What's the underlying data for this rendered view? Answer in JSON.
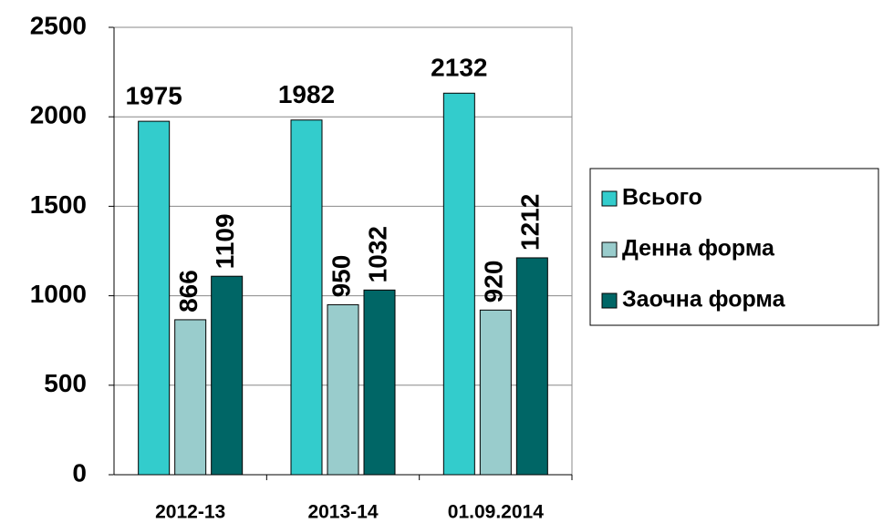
{
  "chart_data": {
    "type": "bar",
    "categories": [
      "2012-13",
      "2013-14",
      "01.09.2014"
    ],
    "series": [
      {
        "name": "Всього",
        "color": "#33cccc",
        "values": [
          1975,
          1982,
          2132
        ]
      },
      {
        "name": "Денна форма",
        "color": "#99cccc",
        "values": [
          866,
          950,
          920
        ]
      },
      {
        "name": "Заочна форма",
        "color": "#006666",
        "values": [
          1109,
          1032,
          1212
        ]
      }
    ],
    "ylim": [
      0,
      2500
    ],
    "yticks": [
      0,
      500,
      1000,
      1500,
      2000,
      2500
    ],
    "grid": true,
    "legend": "right"
  }
}
